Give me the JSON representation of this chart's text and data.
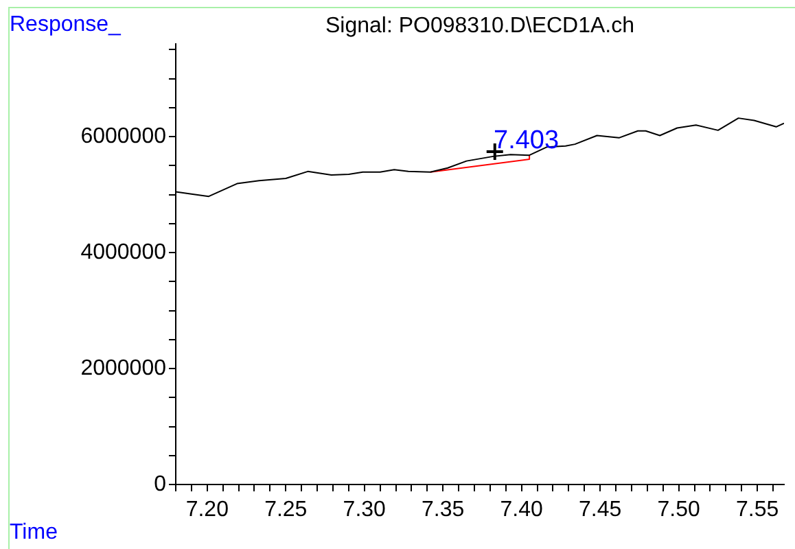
{
  "chart_data": {
    "type": "line",
    "title": "Signal: PO098310.D\\ECD1A.ch",
    "xlabel": "Time",
    "ylabel": "Response_",
    "xlim": [
      7.18,
      7.567
    ],
    "xticks": [
      {
        "value": 7.18,
        "label": null
      },
      {
        "value": 7.19,
        "label": null
      },
      {
        "value": 7.2,
        "label": "7.20"
      },
      {
        "value": 7.21,
        "label": null
      },
      {
        "value": 7.22,
        "label": null
      },
      {
        "value": 7.23,
        "label": null
      },
      {
        "value": 7.24,
        "label": null
      },
      7.25,
      {
        "value": 7.26,
        "label": null
      },
      {
        "value": 7.27,
        "label": null
      },
      {
        "value": 7.28,
        "label": null
      },
      {
        "value": 7.29,
        "label": null
      },
      {
        "value": 7.3,
        "label": "7.30"
      },
      {
        "value": 7.31,
        "label": null
      },
      {
        "value": 7.32,
        "label": null
      },
      {
        "value": 7.33,
        "label": null
      },
      {
        "value": 7.34,
        "label": null
      },
      7.35,
      {
        "value": 7.36,
        "label": null
      },
      {
        "value": 7.37,
        "label": null
      },
      {
        "value": 7.38,
        "label": null
      },
      {
        "value": 7.39,
        "label": null
      },
      {
        "value": 7.4,
        "label": "7.40"
      },
      {
        "value": 7.41,
        "label": null
      },
      {
        "value": 7.42,
        "label": null
      },
      {
        "value": 7.43,
        "label": null
      },
      {
        "value": 7.44,
        "label": null
      },
      7.45,
      {
        "value": 7.46,
        "label": null
      },
      {
        "value": 7.47,
        "label": null
      },
      {
        "value": 7.48,
        "label": null
      },
      {
        "value": 7.49,
        "label": null
      },
      {
        "value": 7.5,
        "label": "7.50"
      },
      {
        "value": 7.51,
        "label": null
      },
      {
        "value": 7.52,
        "label": null
      },
      {
        "value": 7.53,
        "label": null
      },
      {
        "value": 7.54,
        "label": null
      },
      7.55,
      {
        "value": 7.56,
        "label": null
      }
    ],
    "ylim": [
      0,
      7600000
    ],
    "yticks": [
      0,
      {
        "value": 500000,
        "label": null
      },
      {
        "value": 1000000,
        "label": null
      },
      {
        "value": 1500000,
        "label": null
      },
      2000000,
      {
        "value": 2500000,
        "label": null
      },
      {
        "value": 3000000,
        "label": null
      },
      {
        "value": 3500000,
        "label": null
      },
      4000000,
      {
        "value": 4500000,
        "label": null
      },
      {
        "value": 5000000,
        "label": null
      },
      {
        "value": 5500000,
        "label": null
      },
      6000000,
      {
        "value": 6500000,
        "label": null
      },
      {
        "value": 7000000,
        "label": null
      },
      {
        "value": 7500000,
        "label": null
      }
    ],
    "grid": false,
    "legend": false,
    "series": [
      {
        "color": "#000000",
        "x": [
          7.18,
          7.19,
          7.201,
          7.219,
          7.233,
          7.25,
          7.264,
          7.279,
          7.29,
          7.299,
          7.31,
          7.319,
          7.328,
          7.342,
          7.353,
          7.365,
          7.382,
          7.393,
          7.405,
          7.416,
          7.428,
          7.434,
          7.448,
          7.462,
          7.474,
          7.479,
          7.488,
          7.499,
          7.511,
          7.525,
          7.538,
          7.548,
          7.562,
          7.567
        ],
        "values": [
          5050000,
          5010000,
          4970000,
          5190000,
          5240000,
          5280000,
          5400000,
          5340000,
          5350000,
          5390000,
          5390000,
          5430000,
          5400000,
          5390000,
          5460000,
          5580000,
          5660000,
          5690000,
          5680000,
          5820000,
          5840000,
          5870000,
          6020000,
          5980000,
          6100000,
          6100000,
          6020000,
          6150000,
          6200000,
          6110000,
          6320000,
          6280000,
          6170000,
          6230000
        ]
      },
      {
        "color": "#ff0000",
        "x": [
          7.342,
          7.405,
          7.405
        ],
        "values": [
          5390000,
          5610000,
          5680000
        ]
      },
      {
        "type": "scatter",
        "color": "#000000",
        "marker": "cross",
        "x": [
          7.383
        ],
        "values": [
          5740000
        ]
      }
    ],
    "annotations": [
      {
        "text": "7.403",
        "x": 7.403,
        "y": 5800000
      }
    ]
  }
}
